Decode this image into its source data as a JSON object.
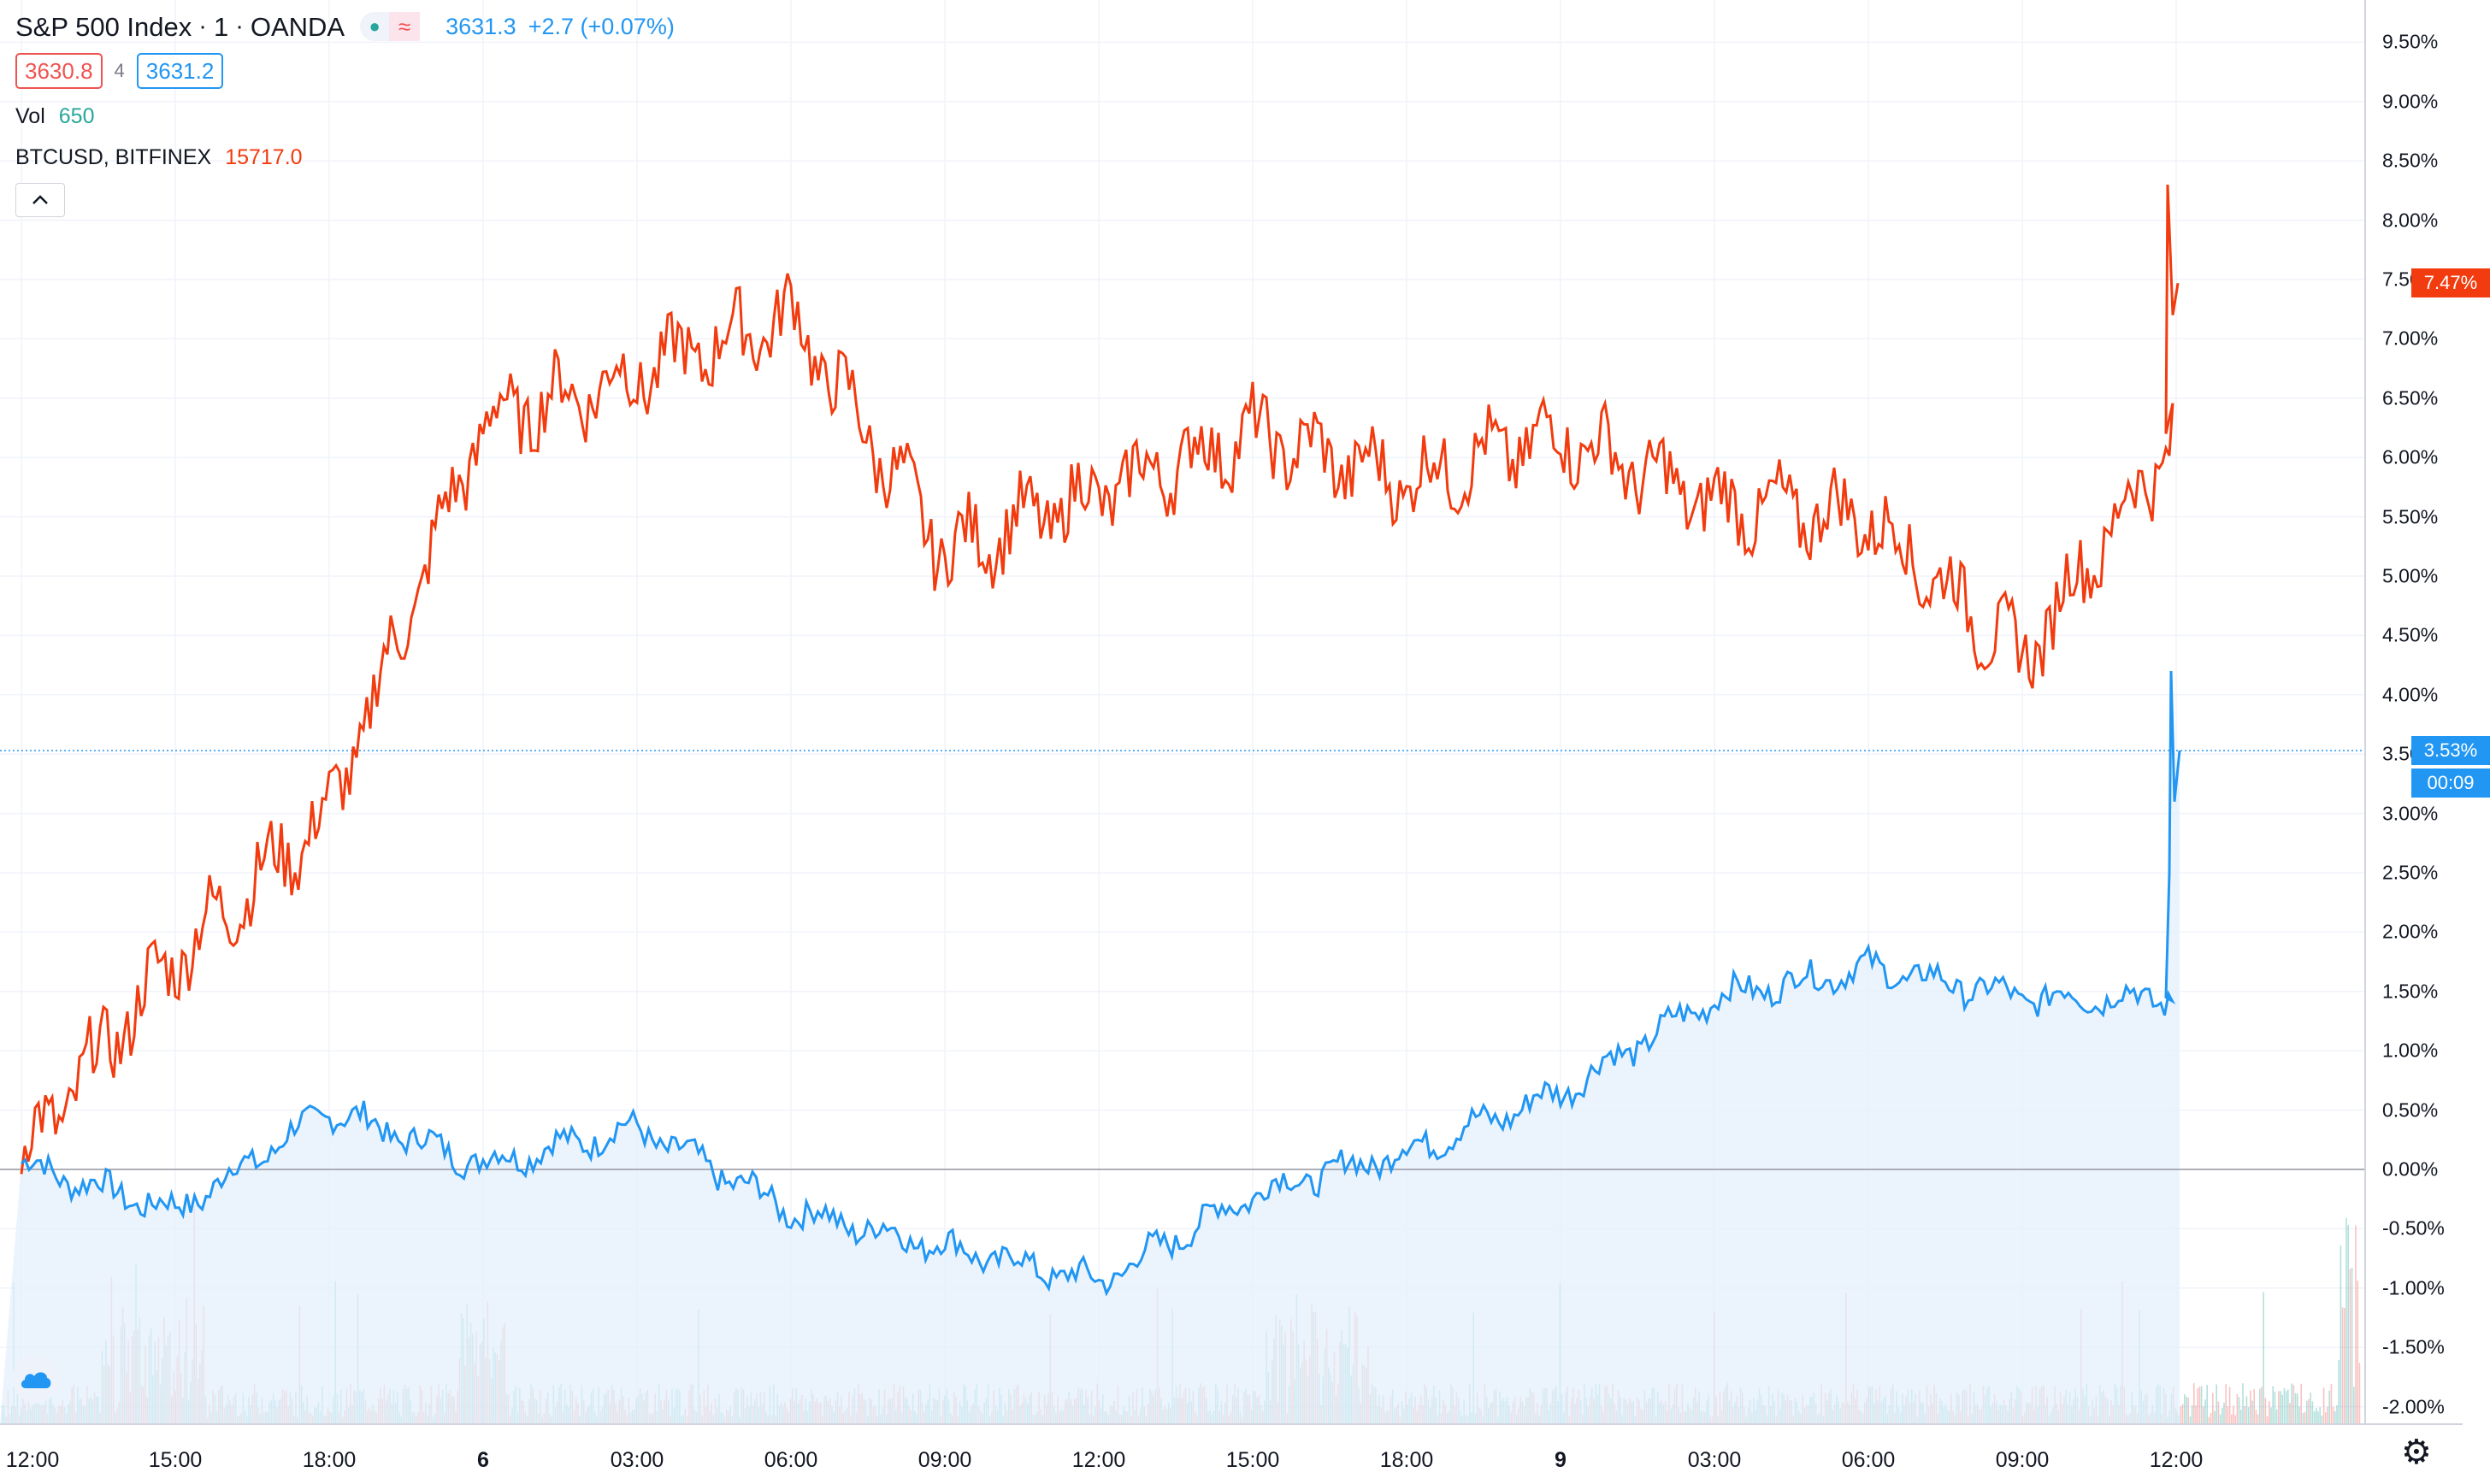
{
  "legend": {
    "symbol": "S&P 500 Index",
    "interval": "1",
    "source": "OANDA",
    "last": "3631.3",
    "change": "+2.7 (+0.07%)",
    "bid": "3630.8",
    "spread": "4",
    "ask": "3631.2",
    "status_icons": [
      "market-open-dot-icon",
      "delayed-wave-icon"
    ]
  },
  "volume": {
    "label": "Vol",
    "value": "650"
  },
  "compare": {
    "label": "BTCUSD, BITFINEX",
    "value": "15717.0"
  },
  "collapse_icon": "chevron-up-icon",
  "colors": {
    "main_line": "#2196f3",
    "main_fill": "#e3f0fc",
    "compare_line": "#f23b0e",
    "volume_up": "#26a69a",
    "volume_down": "#ef5350",
    "grid": "#f0f3fa"
  },
  "y_axis": {
    "ticks": [
      "9.50%",
      "9.00%",
      "8.50%",
      "8.00%",
      "7.50%",
      "7.00%",
      "6.50%",
      "6.00%",
      "5.50%",
      "5.00%",
      "4.50%",
      "4.00%",
      "3.50%",
      "3.00%",
      "2.50%",
      "2.00%",
      "1.50%",
      "1.00%",
      "0.50%",
      "0.00%",
      "-0.50%",
      "-1.00%",
      "-1.50%",
      "-2.00%"
    ],
    "compare_tag": "7.47%",
    "main_tag": "3.53%",
    "countdown_tag": "00:09"
  },
  "x_axis": {
    "ticks": [
      "12:00",
      "15:00",
      "18:00",
      "6",
      "03:00",
      "06:00",
      "09:00",
      "12:00",
      "15:00",
      "18:00",
      "9",
      "03:00",
      "06:00",
      "09:00",
      "12:00"
    ],
    "bold_ticks": [
      "6",
      "9"
    ]
  },
  "settings_icon": "gear-icon",
  "logo_icon": "cloud-logo-icon",
  "chart_data": {
    "type": "line",
    "ylabel": "",
    "ylim": [
      -2.1,
      9.7
    ],
    "y_unit": "%",
    "x": [
      "12:00",
      "15:00",
      "18:00",
      "6",
      "03:00",
      "06:00",
      "09:00",
      "12:00",
      "15:00",
      "18:00",
      "9",
      "03:00",
      "06:00",
      "09:00",
      "12:00"
    ],
    "series": [
      {
        "name": "S&P 500 Index",
        "color": "#2196f3",
        "values": [
          0.05,
          -0.35,
          0.5,
          0.05,
          0.35,
          -0.35,
          -0.65,
          -0.95,
          -0.2,
          0.15,
          0.65,
          1.45,
          1.7,
          1.45,
          3.53
        ]
      },
      {
        "name": "BTCUSD, BITFINEX",
        "color": "#f23b0e",
        "values": [
          0.1,
          1.8,
          3.0,
          6.3,
          6.7,
          7.2,
          5.2,
          5.7,
          6.2,
          5.8,
          6.2,
          5.6,
          5.5,
          4.3,
          7.47
        ]
      }
    ]
  }
}
